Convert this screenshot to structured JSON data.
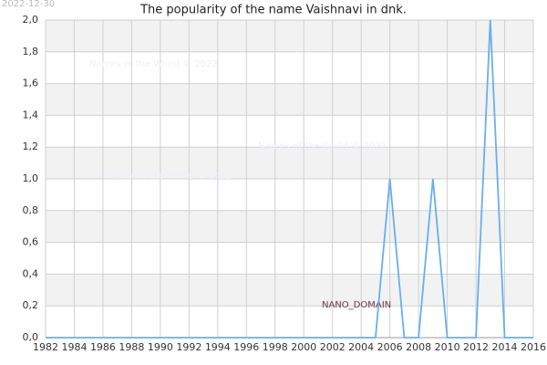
{
  "chart_data": {
    "type": "line",
    "title": "The popularity of the name Vaishnavi in dnk.",
    "x": [
      1982,
      1983,
      1984,
      1985,
      1986,
      1987,
      1988,
      1989,
      1990,
      1991,
      1992,
      1993,
      1994,
      1995,
      1996,
      1997,
      1998,
      1999,
      2000,
      2001,
      2002,
      2003,
      2004,
      2005,
      2006,
      2007,
      2008,
      2009,
      2010,
      2011,
      2012,
      2013,
      2014,
      2015,
      2016
    ],
    "series": [
      {
        "color": "#6aaeee",
        "values": [
          0,
          0,
          0,
          0,
          0,
          0,
          0,
          0,
          0,
          0,
          0,
          0,
          0,
          0,
          0,
          0,
          0,
          0,
          0,
          0,
          0,
          0,
          0,
          0,
          1,
          0,
          0,
          1,
          0,
          0,
          0,
          2,
          0,
          0,
          0
        ]
      }
    ],
    "xlim": [
      1982,
      2016
    ],
    "xticks": [
      1982,
      1984,
      1986,
      1988,
      1990,
      1992,
      1994,
      1996,
      1998,
      2000,
      2002,
      2004,
      2006,
      2008,
      2010,
      2012,
      2014,
      2016
    ],
    "ylim": [
      0,
      2
    ],
    "yticks": [
      {
        "value": 0,
        "label": "0,0"
      },
      {
        "value": 0.2,
        "label": "0,2"
      },
      {
        "value": 0.4,
        "label": "0,4"
      },
      {
        "value": 0.6,
        "label": "0,6"
      },
      {
        "value": 0.8,
        "label": "0,8"
      },
      {
        "value": 1,
        "label": "1,0"
      },
      {
        "value": 1.2,
        "label": "1,2"
      },
      {
        "value": 1.4,
        "label": "1,4"
      },
      {
        "value": 1.6,
        "label": "1,6"
      },
      {
        "value": 1.8,
        "label": "1,8"
      },
      {
        "value": 2,
        "label": "2,0"
      }
    ],
    "grid": true,
    "annotations": [
      "2022-12-30",
      "Names of the World © 2022",
      "Names of the World © 2022",
      "Names of the World © 2022",
      "NANO_DOMAIN"
    ]
  }
}
